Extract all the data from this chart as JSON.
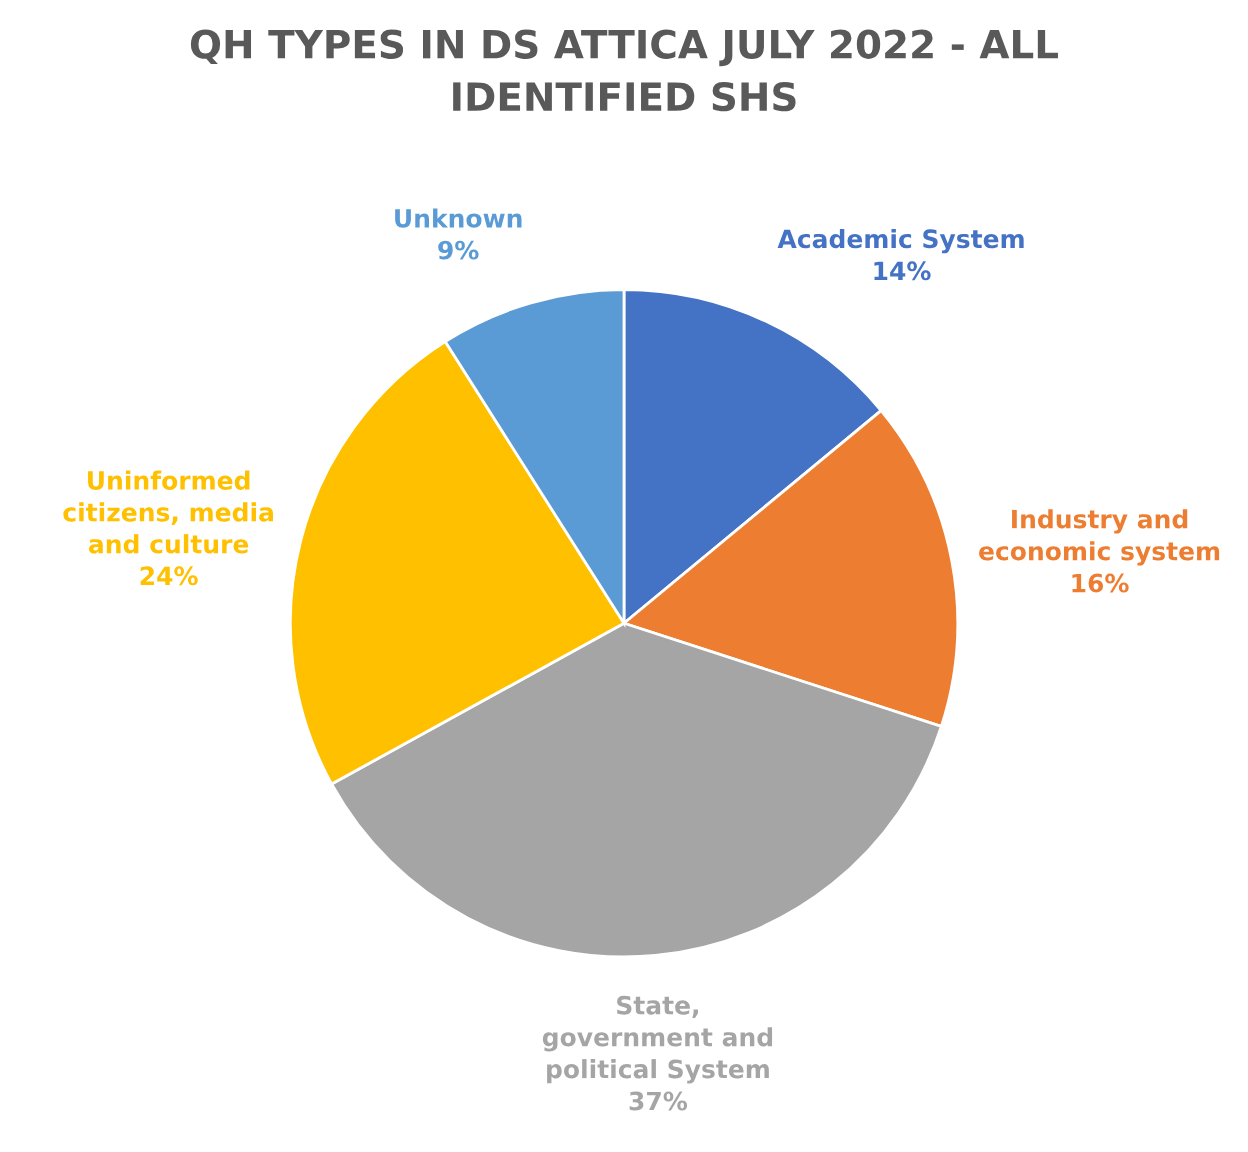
{
  "chart_data": {
    "type": "pie",
    "title": "QH TYPES IN DS ATTICA JULY 2022 - ALL IDENTIFIED SHS",
    "categories": [
      "Academic System",
      "Industry and economic system",
      "State, government and political System",
      "Uninformed citizens, media and culture",
      "Unknown"
    ],
    "values": [
      14,
      16,
      37,
      24,
      9
    ],
    "value_labels": [
      "14%",
      "16%",
      "37%",
      "24%",
      "9%"
    ],
    "colors": [
      "#4472c4",
      "#ed7d31",
      "#a5a5a5",
      "#ffc000",
      "#5b9bd5"
    ],
    "legend": false
  }
}
